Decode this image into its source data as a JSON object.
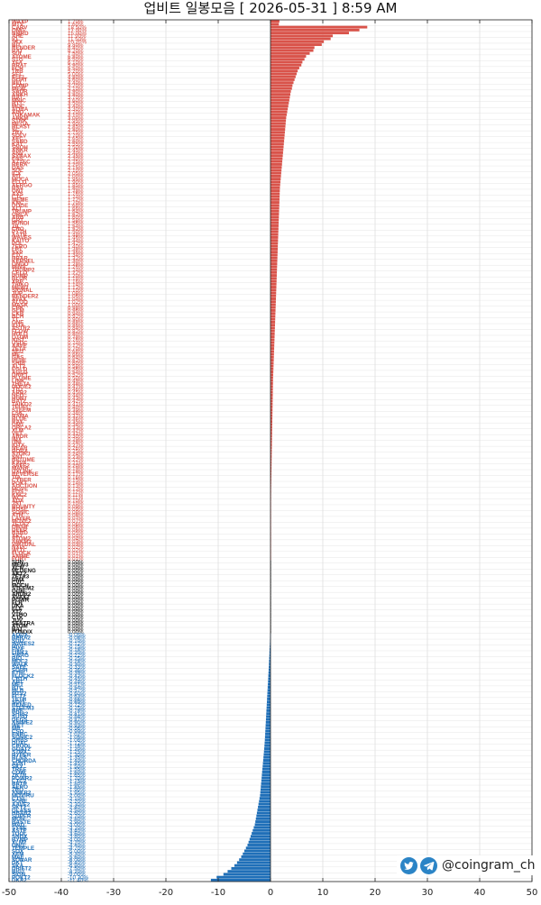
{
  "title": "업비트 일봉모음 [ 2026-05-31 ]  8:59 AM",
  "social": {
    "handle": "@coingram_ch",
    "icons": [
      "twitter-icon",
      "telegram-icon"
    ],
    "icon_color": "#2b84c6"
  },
  "colors": {
    "up": "#d9534a",
    "flat": "#111111",
    "down": "#1f6fb8"
  },
  "chart_data": {
    "type": "bar",
    "orientation": "horizontal",
    "xlim": [
      -50,
      50
    ],
    "xticks": [
      -50,
      -40,
      -30,
      -20,
      -10,
      0,
      10,
      20,
      30,
      40,
      50
    ],
    "grid": true,
    "rows": [
      {
        "name": "WAXP",
        "change": 1.7
      },
      {
        "name": "MTV",
        "change": 1.6
      },
      {
        "name": "CARV",
        "change": 18.5
      },
      {
        "name": "OMG",
        "change": 17.0
      },
      {
        "name": "NMRD",
        "change": 15.0
      },
      {
        "name": "AHE",
        "change": 11.9
      },
      {
        "name": "IQ",
        "change": 11.5
      },
      {
        "name": "STX",
        "change": 10.2
      },
      {
        "name": "BIT",
        "change": 9.8
      },
      {
        "name": "RENDER",
        "change": 8.4
      },
      {
        "name": "RAT",
        "change": 8.2
      },
      {
        "name": "SUI",
        "change": 7.5
      },
      {
        "name": "ATOME",
        "change": 6.8
      },
      {
        "name": "STG",
        "change": 6.5
      },
      {
        "name": "YFA",
        "change": 6.1
      },
      {
        "name": "BRAT",
        "change": 5.9
      },
      {
        "name": "FCH",
        "change": 5.5
      },
      {
        "name": "TRB",
        "change": 5.2
      },
      {
        "name": "SEI",
        "change": 5.0
      },
      {
        "name": "ELEL",
        "change": 4.8
      },
      {
        "name": "GOAT",
        "change": 4.6
      },
      {
        "name": "BEL",
        "change": 4.4
      },
      {
        "name": "COMP",
        "change": 4.2
      },
      {
        "name": "MEW",
        "change": 4.1
      },
      {
        "name": "SAUR",
        "change": 3.9
      },
      {
        "name": "ARKH",
        "change": 3.8
      },
      {
        "name": "BAT",
        "change": 3.7
      },
      {
        "name": "MNIC",
        "change": 3.6
      },
      {
        "name": "BTT",
        "change": 3.5
      },
      {
        "name": "MOC",
        "change": 3.4
      },
      {
        "name": "AQRA",
        "change": 3.3
      },
      {
        "name": "AUD",
        "change": 3.2
      },
      {
        "name": "TOKAMAK",
        "change": 3.1
      },
      {
        "name": "ARKM",
        "change": 3.0
      },
      {
        "name": "STRK",
        "change": 2.95
      },
      {
        "name": "MEGA",
        "change": 2.9
      },
      {
        "name": "BLAST",
        "change": 2.85
      },
      {
        "name": "SC",
        "change": 2.8
      },
      {
        "name": "ZRX",
        "change": 2.75
      },
      {
        "name": "SOLV",
        "change": 2.7
      },
      {
        "name": "XEC",
        "change": 2.65
      },
      {
        "name": "SAND",
        "change": 2.6
      },
      {
        "name": "KAT",
        "change": 2.55
      },
      {
        "name": "SNOH",
        "change": 2.5
      },
      {
        "name": "ANKR",
        "change": 2.45
      },
      {
        "name": "ANV",
        "change": 2.4
      },
      {
        "name": "SYNAX",
        "change": 2.35
      },
      {
        "name": "ENS",
        "change": 2.3
      },
      {
        "name": "AZTEC",
        "change": 2.25
      },
      {
        "name": "BERA",
        "change": 2.2
      },
      {
        "name": "OAS",
        "change": 2.15
      },
      {
        "name": "SOL",
        "change": 2.1
      },
      {
        "name": "ICX",
        "change": 2.05
      },
      {
        "name": "ATL",
        "change": 2.0
      },
      {
        "name": "MOCA",
        "change": 1.95
      },
      {
        "name": "ELLO",
        "change": 1.9
      },
      {
        "name": "AERGO",
        "change": 1.85
      },
      {
        "name": "BSV",
        "change": 1.8
      },
      {
        "name": "ONT",
        "change": 1.78
      },
      {
        "name": "AXS",
        "change": 1.76
      },
      {
        "name": "CTC",
        "change": 1.74
      },
      {
        "name": "MEME",
        "change": 1.72
      },
      {
        "name": "KNC",
        "change": 1.7
      },
      {
        "name": "DOGE",
        "change": 1.68
      },
      {
        "name": "ALT",
        "change": 1.66
      },
      {
        "name": "TRUMP",
        "change": 1.64
      },
      {
        "name": "ORCA",
        "change": 1.62
      },
      {
        "name": "ARB",
        "change": 1.6
      },
      {
        "name": "GRT",
        "change": 1.58
      },
      {
        "name": "PUNDI",
        "change": 1.56
      },
      {
        "name": "ZIL",
        "change": 1.54
      },
      {
        "name": "CRO",
        "change": 1.52
      },
      {
        "name": "PYTH",
        "change": 1.5
      },
      {
        "name": "ASTR",
        "change": 1.48
      },
      {
        "name": "WAVES",
        "change": 1.46
      },
      {
        "name": "KAITO",
        "change": 1.44
      },
      {
        "name": "POL",
        "change": 1.42
      },
      {
        "name": "ZERO",
        "change": 1.4
      },
      {
        "name": "LPT",
        "change": 1.38
      },
      {
        "name": "SXP",
        "change": 1.36
      },
      {
        "name": "ETC",
        "change": 1.34
      },
      {
        "name": "HBAR",
        "change": 1.32
      },
      {
        "name": "KERNEL",
        "change": 1.3
      },
      {
        "name": "ONDO",
        "change": 1.28
      },
      {
        "name": "MINA",
        "change": 1.26
      },
      {
        "name": "TRUMP2",
        "change": 1.24
      },
      {
        "name": "CELO",
        "change": 1.22
      },
      {
        "name": "PUMP",
        "change": 1.2
      },
      {
        "name": "BLUR",
        "change": 1.18
      },
      {
        "name": "XRP",
        "change": 1.16
      },
      {
        "name": "TAIKO",
        "change": 1.14
      },
      {
        "name": "MEW2",
        "change": 1.12
      },
      {
        "name": "SIGNAL",
        "change": 1.1
      },
      {
        "name": "JUP",
        "change": 1.08
      },
      {
        "name": "RENDER2",
        "change": 1.06
      },
      {
        "name": "AVAX",
        "change": 1.04
      },
      {
        "name": "ALGO",
        "change": 1.02
      },
      {
        "name": "MASK",
        "change": 1.0
      },
      {
        "name": "CBK",
        "change": 0.98
      },
      {
        "name": "GLM",
        "change": 0.96
      },
      {
        "name": "CKB",
        "change": 0.94
      },
      {
        "name": "BCH",
        "change": 0.92
      },
      {
        "name": "TT",
        "change": 0.9
      },
      {
        "name": "ONE",
        "change": 0.88
      },
      {
        "name": "IOTA",
        "change": 0.86
      },
      {
        "name": "ASTR2",
        "change": 0.84
      },
      {
        "name": "FLOW",
        "change": 0.82
      },
      {
        "name": "HOLO",
        "change": 0.8
      },
      {
        "name": "QTUM",
        "change": 0.78
      },
      {
        "name": "IOST",
        "change": 0.76
      },
      {
        "name": "USDC",
        "change": 0.74
      },
      {
        "name": "AAVE",
        "change": 0.72
      },
      {
        "name": "ZETA",
        "change": 0.7
      },
      {
        "name": "SEI2",
        "change": 0.68
      },
      {
        "name": "ME",
        "change": 0.66
      },
      {
        "name": "GAS",
        "change": 0.64
      },
      {
        "name": "PEPE",
        "change": 0.62
      },
      {
        "name": "SHIB",
        "change": 0.6
      },
      {
        "name": "ALT2",
        "change": 0.58
      },
      {
        "name": "EGLD",
        "change": 0.56
      },
      {
        "name": "AGLD",
        "change": 0.54
      },
      {
        "name": "DRIFT",
        "change": 0.52
      },
      {
        "name": "PLUME",
        "change": 0.5
      },
      {
        "name": "LINK",
        "change": 0.49
      },
      {
        "name": "THETA",
        "change": 0.48
      },
      {
        "name": "DOGE2",
        "change": 0.47
      },
      {
        "name": "JTO",
        "change": 0.46
      },
      {
        "name": "ARB2",
        "change": 0.45
      },
      {
        "name": "NEO",
        "change": 0.44
      },
      {
        "name": "HUNT",
        "change": 0.43
      },
      {
        "name": "BAT2",
        "change": 0.42
      },
      {
        "name": "TAIKO2",
        "change": 0.41
      },
      {
        "name": "TFUEL",
        "change": 0.4
      },
      {
        "name": "STEEM",
        "change": 0.39
      },
      {
        "name": "LSK",
        "change": 0.38
      },
      {
        "name": "NAMA",
        "change": 0.37
      },
      {
        "name": "BLUE",
        "change": 0.36
      },
      {
        "name": "RAY",
        "change": 0.35
      },
      {
        "name": "GMT",
        "change": 0.34
      },
      {
        "name": "ORCA2",
        "change": 0.33
      },
      {
        "name": "XLM",
        "change": 0.32
      },
      {
        "name": "VET",
        "change": 0.31
      },
      {
        "name": "ARDR",
        "change": 0.3
      },
      {
        "name": "IMX",
        "change": 0.29
      },
      {
        "name": "UNI",
        "change": 0.28
      },
      {
        "name": "IOTX",
        "change": 0.27
      },
      {
        "name": "NEAR",
        "change": 0.26
      },
      {
        "name": "BORA",
        "change": 0.25
      },
      {
        "name": "STORJ",
        "change": 0.24
      },
      {
        "name": "SNT",
        "change": 0.23
      },
      {
        "name": "BIGTIME",
        "change": 0.22
      },
      {
        "name": "KAVA",
        "change": 0.21
      },
      {
        "name": "SAFE2",
        "change": 0.2
      },
      {
        "name": "MANA",
        "change": 0.19
      },
      {
        "name": "UXLINK",
        "change": 0.18
      },
      {
        "name": "REVERSE",
        "change": 0.17
      },
      {
        "name": "TIA",
        "change": 0.16
      },
      {
        "name": "CYBER",
        "change": 0.15
      },
      {
        "name": "POKT",
        "change": 0.14
      },
      {
        "name": "AUCTION",
        "change": 0.13
      },
      {
        "name": "MOVE",
        "change": 0.12
      },
      {
        "name": "EOS",
        "change": 0.12
      },
      {
        "name": "KNC2",
        "change": 0.11
      },
      {
        "name": "WCT",
        "change": 0.11
      },
      {
        "name": "ADA",
        "change": 0.1
      },
      {
        "name": "JST",
        "change": 0.1
      },
      {
        "name": "BOUNTY",
        "change": 0.09
      },
      {
        "name": "ROSE",
        "change": 0.09
      },
      {
        "name": "SONIC",
        "change": 0.08
      },
      {
        "name": "ATH",
        "change": 0.08
      },
      {
        "name": "LAYER",
        "change": 0.07
      },
      {
        "name": "MOVE2",
        "change": 0.07
      },
      {
        "name": "ZETA2",
        "change": 0.06
      },
      {
        "name": "OBSR",
        "change": 0.06
      },
      {
        "name": "DEEP",
        "change": 0.05
      },
      {
        "name": "BARD",
        "change": 0.05
      },
      {
        "name": "AKT",
        "change": 0.04
      },
      {
        "name": "ATOM2",
        "change": 0.04
      },
      {
        "name": "ARKM2",
        "change": 0.03
      },
      {
        "name": "VIRTUAL",
        "change": 0.03
      },
      {
        "name": "NXPC",
        "change": 0.02
      },
      {
        "name": "WLD",
        "change": 0.02
      },
      {
        "name": "FLOCK",
        "change": 0.01
      },
      {
        "name": "ANIME",
        "change": 0.01
      },
      {
        "name": "FORT",
        "change": 0.01
      },
      {
        "name": "SUN",
        "change": 0
      },
      {
        "name": "MEW3",
        "change": 0
      },
      {
        "name": "XCN",
        "change": 0
      },
      {
        "name": "MLDENG",
        "change": 0
      },
      {
        "name": "AKT2",
        "change": 0
      },
      {
        "name": "ZETA3",
        "change": 0
      },
      {
        "name": "GMX",
        "change": 0
      },
      {
        "name": "CVC",
        "change": 0
      },
      {
        "name": "MOCH",
        "change": 0
      },
      {
        "name": "STEEM2",
        "change": 0
      },
      {
        "name": "OGN",
        "change": 0
      },
      {
        "name": "ARDR2",
        "change": 0
      },
      {
        "name": "AVAX2",
        "change": 0
      },
      {
        "name": "POWR",
        "change": 0
      },
      {
        "name": "FLR",
        "change": 0
      },
      {
        "name": "DKA",
        "change": 0
      },
      {
        "name": "ELF",
        "change": 0
      },
      {
        "name": "XTZ",
        "change": 0
      },
      {
        "name": "VTHO",
        "change": 0
      },
      {
        "name": "CTK",
        "change": 0
      },
      {
        "name": "JUV",
        "change": 0
      },
      {
        "name": "SENTRA",
        "change": 0
      },
      {
        "name": "ATOM",
        "change": 0
      },
      {
        "name": "BAT",
        "change": 0
      },
      {
        "name": "FUNDIX",
        "change": 0
      },
      {
        "name": "AQUA",
        "change": -0.05
      },
      {
        "name": "BERA2",
        "change": -0.08
      },
      {
        "name": "SUI2",
        "change": -0.1
      },
      {
        "name": "WAVES2",
        "change": -0.12
      },
      {
        "name": "HIVE",
        "change": -0.15
      },
      {
        "name": "ENA",
        "change": -0.18
      },
      {
        "name": "LINK2",
        "change": -0.2
      },
      {
        "name": "SWAG",
        "change": -0.22
      },
      {
        "name": "BIO",
        "change": -0.25
      },
      {
        "name": "MOC2",
        "change": -0.28
      },
      {
        "name": "WALK",
        "change": -0.3
      },
      {
        "name": "SAFE",
        "change": -0.33
      },
      {
        "name": "SOPH",
        "change": -0.36
      },
      {
        "name": "ETHI",
        "change": -0.39
      },
      {
        "name": "FLOCK2",
        "change": -0.42
      },
      {
        "name": "CBTH",
        "change": -0.45
      },
      {
        "name": "AHT",
        "change": -0.48
      },
      {
        "name": "MET",
        "change": -0.51
      },
      {
        "name": "BTC",
        "change": -0.54
      },
      {
        "name": "MLB",
        "change": -0.57
      },
      {
        "name": "MTV2",
        "change": -0.6
      },
      {
        "name": "FCT2",
        "change": -0.63
      },
      {
        "name": "TETH",
        "change": -0.66
      },
      {
        "name": "SOFI",
        "change": -0.69
      },
      {
        "name": "RENED",
        "change": -0.72
      },
      {
        "name": "STEEM3",
        "change": -0.75
      },
      {
        "name": "BRF",
        "change": -0.78
      },
      {
        "name": "SHIB2",
        "change": -0.81
      },
      {
        "name": "SUSD",
        "change": -0.84
      },
      {
        "name": "DEGS",
        "change": -0.87
      },
      {
        "name": "ANIME2",
        "change": -0.9
      },
      {
        "name": "WET",
        "change": -0.93
      },
      {
        "name": "MR",
        "change": -0.96
      },
      {
        "name": "CSO",
        "change": -0.99
      },
      {
        "name": "ENRC",
        "change": -1.02
      },
      {
        "name": "SONIC2",
        "change": -1.05
      },
      {
        "name": "ORBS",
        "change": -1.08
      },
      {
        "name": "DUAL",
        "change": -1.12
      },
      {
        "name": "CPOOL",
        "change": -1.16
      },
      {
        "name": "GOAT2",
        "change": -1.2
      },
      {
        "name": "STMX",
        "change": -1.25
      },
      {
        "name": "HYPER",
        "change": -1.3
      },
      {
        "name": "BLNS",
        "change": -1.35
      },
      {
        "name": "CHORDA",
        "change": -1.4
      },
      {
        "name": "AVNT",
        "change": -1.45
      },
      {
        "name": "SKY",
        "change": -1.5
      },
      {
        "name": "TREE",
        "change": -1.55
      },
      {
        "name": "COW",
        "change": -1.6
      },
      {
        "name": "ZKTR",
        "change": -1.65
      },
      {
        "name": "POWR2",
        "change": -1.7
      },
      {
        "name": "CTC2",
        "change": -1.75
      },
      {
        "name": "BRTP",
        "change": -1.8
      },
      {
        "name": "AERO",
        "change": -1.85
      },
      {
        "name": "ZRO",
        "change": -1.9
      },
      {
        "name": "ANKR2",
        "change": -1.95
      },
      {
        "name": "MOVIRU",
        "change": -2.0
      },
      {
        "name": "CTSI",
        "change": -2.1
      },
      {
        "name": "SONE",
        "change": -2.2
      },
      {
        "name": "AAVE2",
        "change": -2.3
      },
      {
        "name": "SKY2",
        "change": -2.4
      },
      {
        "name": "GLASS",
        "change": -2.5
      },
      {
        "name": "HBAR2",
        "change": -2.6
      },
      {
        "name": "SUPER",
        "change": -2.7
      },
      {
        "name": "MON",
        "change": -2.8
      },
      {
        "name": "BASTE",
        "change": -2.9
      },
      {
        "name": "MAD",
        "change": -3.0
      },
      {
        "name": "SYNE",
        "change": -3.2
      },
      {
        "name": "ASTE",
        "change": -3.4
      },
      {
        "name": "TOOL",
        "change": -3.6
      },
      {
        "name": "SNDX",
        "change": -3.8
      },
      {
        "name": "BYMP",
        "change": -4.0
      },
      {
        "name": "XLM2",
        "change": -4.2
      },
      {
        "name": "ONG",
        "change": -4.4
      },
      {
        "name": "TEMPLE",
        "change": -4.7
      },
      {
        "name": "SOX",
        "change": -5.0
      },
      {
        "name": "XEM",
        "change": -5.3
      },
      {
        "name": "MAE",
        "change": -5.6
      },
      {
        "name": "SONAR",
        "change": -6.0
      },
      {
        "name": "DKT",
        "change": -6.4
      },
      {
        "name": "SKA",
        "change": -6.9
      },
      {
        "name": "DRIFT2",
        "change": -7.5
      },
      {
        "name": "BIGT",
        "change": -8.2
      },
      {
        "name": "SIGN",
        "change": -9.0
      },
      {
        "name": "POKT2",
        "change": -10.3
      },
      {
        "name": "DKA2",
        "change": -11.4
      }
    ]
  }
}
